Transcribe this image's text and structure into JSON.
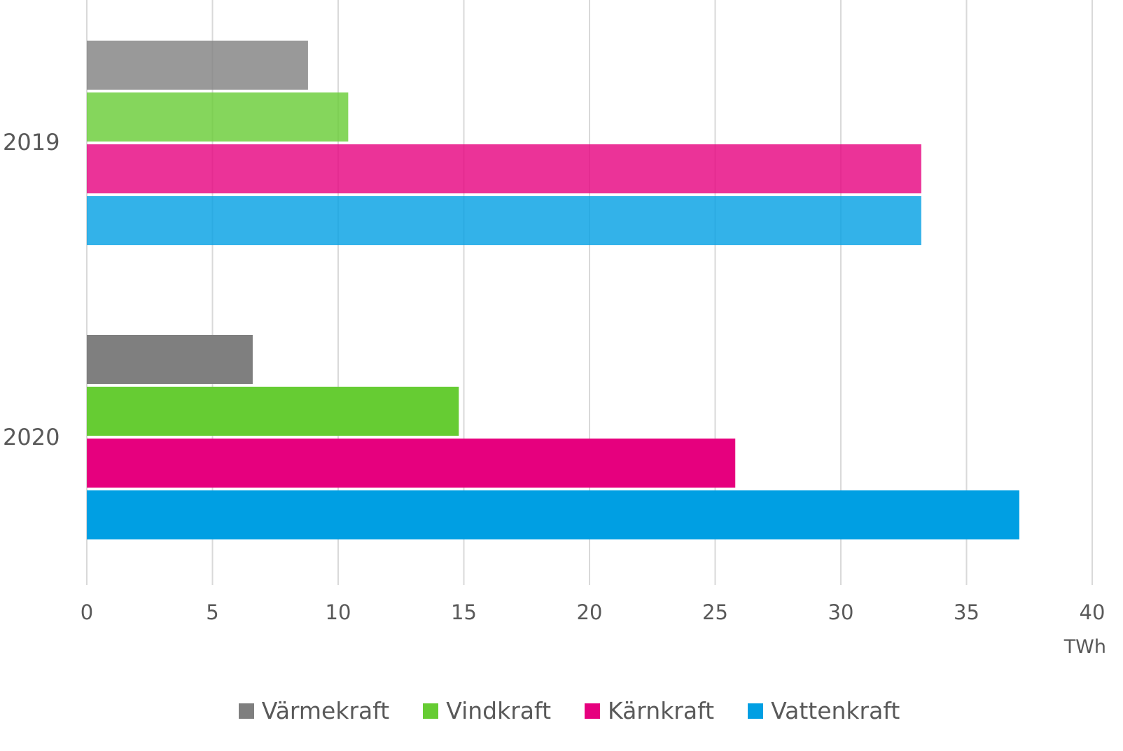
{
  "chart_data": {
    "type": "bar",
    "orientation": "horizontal",
    "categories": [
      "2019",
      "2020"
    ],
    "series": [
      {
        "name": "Värmekraft",
        "values": [
          8.8,
          6.6
        ],
        "color": "#7f7f7f"
      },
      {
        "name": "Vindkraft",
        "values": [
          10.4,
          14.8
        ],
        "color": "#66cc33"
      },
      {
        "name": "Kärnkraft",
        "values": [
          33.2,
          25.8
        ],
        "color": "#e6007e"
      },
      {
        "name": "Vattenkraft",
        "values": [
          33.2,
          37.1
        ],
        "color": "#009fe3"
      }
    ],
    "xlim": [
      0,
      40
    ],
    "xticks": [
      0,
      5,
      10,
      15,
      20,
      25,
      30,
      35,
      40
    ],
    "xunit": "TWh",
    "grid": "vertical",
    "legend_position": "bottom"
  }
}
